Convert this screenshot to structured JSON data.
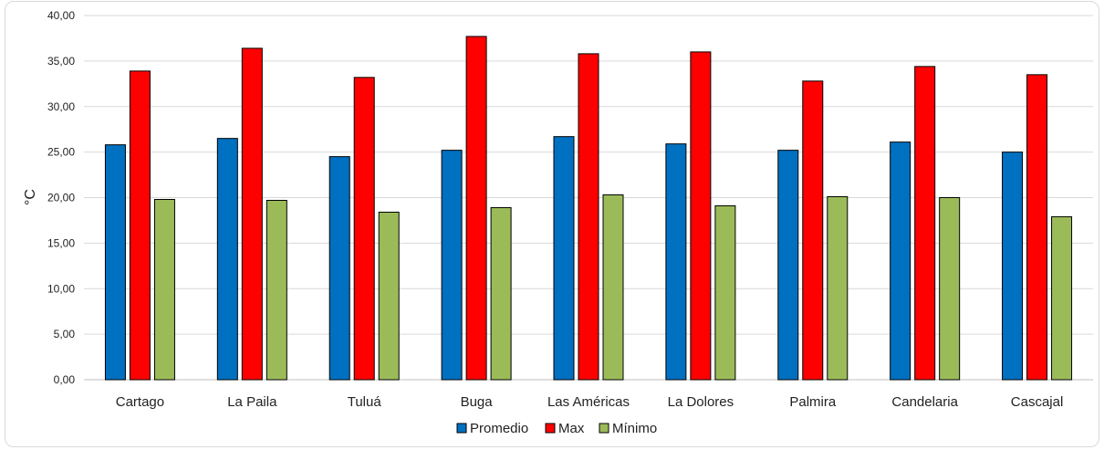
{
  "chart_data": {
    "type": "bar",
    "title": "",
    "xlabel": "",
    "ylabel": "°C",
    "ylim": [
      0,
      40
    ],
    "yticks": [
      "0,00",
      "5,00",
      "10,00",
      "15,00",
      "20,00",
      "25,00",
      "30,00",
      "35,00",
      "40,00"
    ],
    "grid": true,
    "legend_position": "bottom",
    "categories": [
      "Cartago",
      "La Paila",
      "Tuluá",
      "Buga",
      "Las Américas",
      "La Dolores",
      "Palmira",
      "Candelaria",
      "Cascajal"
    ],
    "series": [
      {
        "name": "Promedio",
        "color": "#0070c0",
        "values": [
          25.8,
          26.5,
          24.5,
          25.2,
          26.7,
          25.9,
          25.2,
          26.1,
          25.0
        ]
      },
      {
        "name": "Max",
        "color": "#ff0000",
        "values": [
          33.9,
          36.4,
          33.2,
          37.7,
          35.8,
          36.0,
          32.8,
          34.4,
          33.5
        ]
      },
      {
        "name": "Mínimo",
        "color": "#9bbb59",
        "values": [
          19.8,
          19.7,
          18.4,
          18.9,
          20.3,
          19.1,
          20.1,
          20.0,
          17.9
        ]
      }
    ]
  }
}
